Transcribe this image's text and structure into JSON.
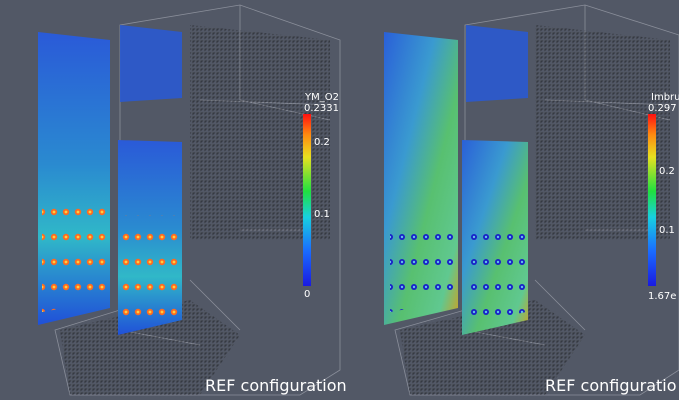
{
  "panels": [
    {
      "colorbar": {
        "title": "YM_O2",
        "max_label": "0.2331",
        "tick_labels": [
          "0.2",
          "0.1",
          "0"
        ]
      },
      "caption": "REF configuration"
    },
    {
      "colorbar": {
        "title": "Imbru",
        "max_label": "0.297",
        "tick_labels": [
          "0.2",
          "0.1"
        ],
        "min_label": "1.67e"
      },
      "caption": "REF configuratio"
    }
  ]
}
